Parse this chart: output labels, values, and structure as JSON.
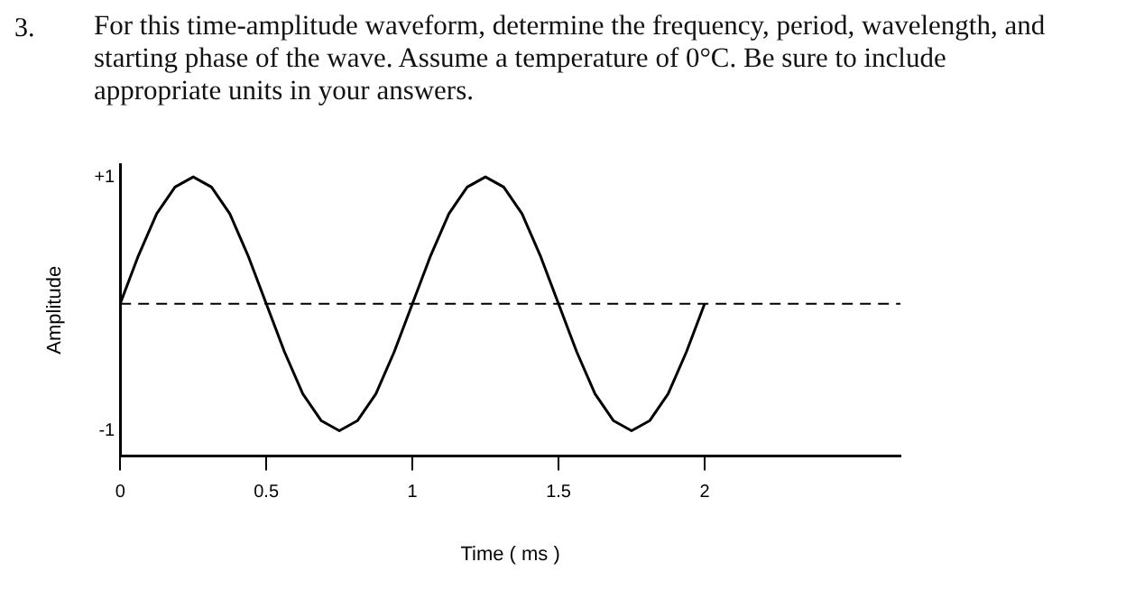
{
  "chart_data": {
    "type": "line",
    "title": "For this time-amplitude waveform, determine the frequency, period, wavelength, and starting phase of the wave. Assume a temperature of 0°C. Be sure to include appropriate units in your answers.",
    "annotations": [
      "3."
    ],
    "xlabel": "Time ( ms )",
    "ylabel": "Amplitude",
    "x": [
      0,
      0.0625,
      0.125,
      0.1875,
      0.25,
      0.3125,
      0.375,
      0.4375,
      0.5,
      0.5625,
      0.625,
      0.6875,
      0.75,
      0.8125,
      0.875,
      0.9375,
      1,
      1.0625,
      1.125,
      1.1875,
      1.25,
      1.3125,
      1.375,
      1.4375,
      1.5,
      1.5625,
      1.625,
      1.6875,
      1.75,
      1.8125,
      1.875,
      1.9375,
      2
    ],
    "series": [
      {
        "color": "#000000",
        "values": [
          0,
          0.38,
          0.71,
          0.92,
          1,
          0.92,
          0.71,
          0.38,
          0,
          -0.38,
          -0.71,
          -0.92,
          -1,
          -0.92,
          -0.71,
          -0.38,
          0,
          0.38,
          0.71,
          0.92,
          1,
          0.92,
          0.71,
          0.38,
          0,
          -0.38,
          -0.71,
          -0.92,
          -1,
          -0.92,
          -0.71,
          -0.38,
          0
        ]
      }
    ],
    "xlim": [
      0,
      2.67
    ],
    "xticks": [
      0,
      0.5,
      1,
      1.5,
      2
    ],
    "ylim": [
      -1.2,
      1.1
    ],
    "yticks": [
      {
        "value": 1,
        "label": "+1"
      },
      {
        "value": -1,
        "label": "-1"
      }
    ],
    "ref_lines": [
      {
        "axis": "y",
        "value": 0,
        "line_style": "dashed",
        "color": "#000000"
      }
    ],
    "grid": false,
    "legend": false,
    "marker": "none",
    "line_style": "solid"
  }
}
